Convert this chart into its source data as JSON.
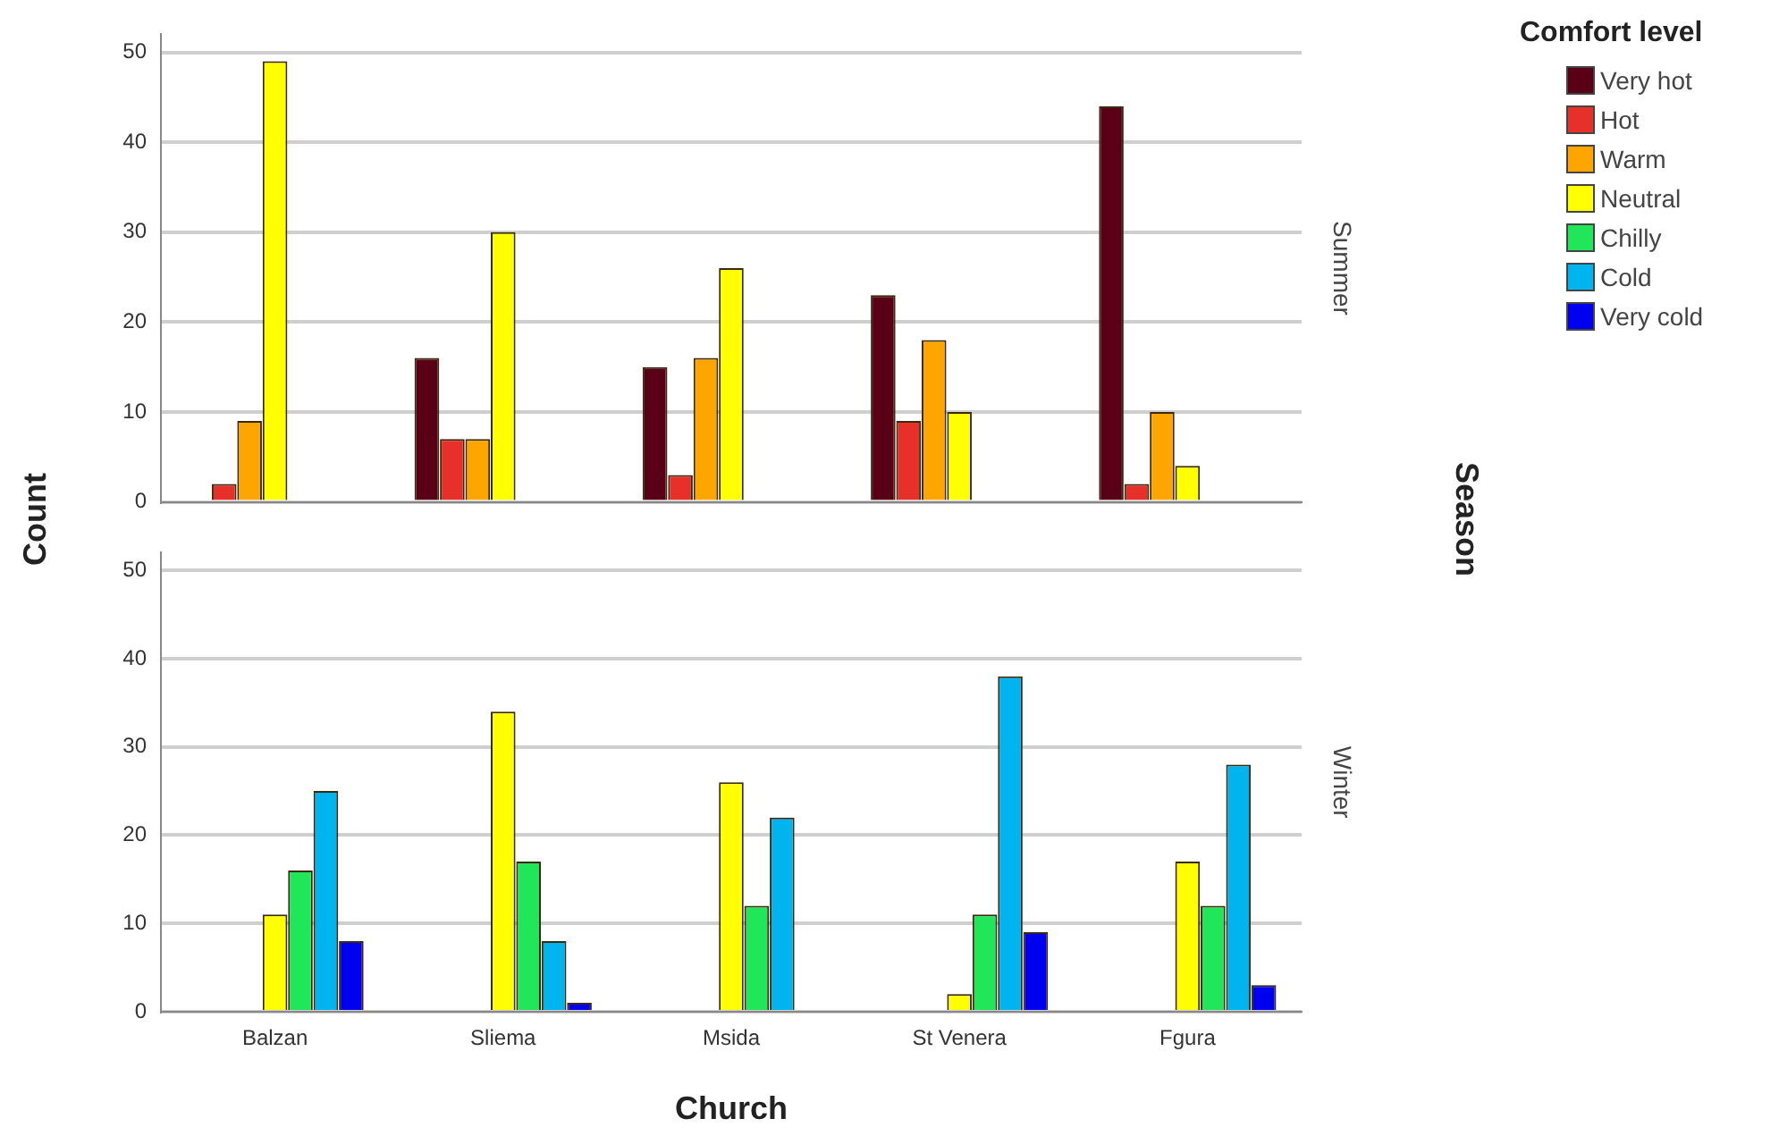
{
  "chart_data": [
    {
      "type": "bar",
      "annotations": [
        "Summer"
      ],
      "ylabel": "Count",
      "y2label": "Season",
      "legend_title": "Comfort level",
      "legend": "top right",
      "grid": "y",
      "tick_labels": "y",
      "categories": [
        null,
        null,
        null,
        null,
        null
      ],
      "ylim": [
        0,
        52
      ],
      "yticks": [
        0,
        10,
        20,
        30,
        40,
        50
      ],
      "series": [
        {
          "name": "Very hot",
          "color": "#5a0016",
          "values": [
            0,
            16,
            15,
            23,
            44
          ]
        },
        {
          "name": "Hot",
          "color": "#e8302a",
          "values": [
            2,
            7,
            3,
            9,
            2
          ]
        },
        {
          "name": "Warm",
          "color": "#ffa500",
          "values": [
            9,
            7,
            16,
            18,
            10
          ]
        },
        {
          "name": "Neutral",
          "color": "#ffff00",
          "values": [
            49,
            30,
            26,
            10,
            4
          ]
        },
        {
          "name": "Chilly",
          "color": "#22e65a",
          "values": [
            null,
            null,
            null,
            null,
            null
          ]
        },
        {
          "name": "Cold",
          "color": "#00b4f0",
          "values": [
            null,
            null,
            null,
            null,
            null
          ]
        },
        {
          "name": "Very cold",
          "color": "#0000f0",
          "values": [
            null,
            null,
            0,
            null,
            null
          ]
        }
      ]
    },
    {
      "type": "bar",
      "annotations": [
        "Winter"
      ],
      "xlabel": "Church",
      "grid": "y",
      "categories": [
        "Balzan",
        "Sliema",
        "Msida",
        "St Venera",
        "Fgura"
      ],
      "ylim": [
        0,
        52
      ],
      "yticks": [
        0,
        10,
        20,
        30,
        40,
        50
      ],
      "series": [
        {
          "color": "#5a0016",
          "values": [
            null,
            null,
            null,
            null,
            null
          ]
        },
        {
          "color": "#e8302a",
          "values": [
            null,
            null,
            null,
            null,
            null
          ]
        },
        {
          "color": "#ffa500",
          "values": [
            null,
            null,
            null,
            null,
            null
          ]
        },
        {
          "color": "#ffff00",
          "values": [
            11,
            34,
            26,
            2,
            17
          ]
        },
        {
          "color": "#22e65a",
          "values": [
            16,
            17,
            12,
            11,
            12
          ]
        },
        {
          "color": "#00b4f0",
          "values": [
            25,
            8,
            22,
            38,
            28
          ]
        },
        {
          "color": "#0000f0",
          "values": [
            8,
            1,
            null,
            9,
            3
          ]
        }
      ]
    }
  ]
}
